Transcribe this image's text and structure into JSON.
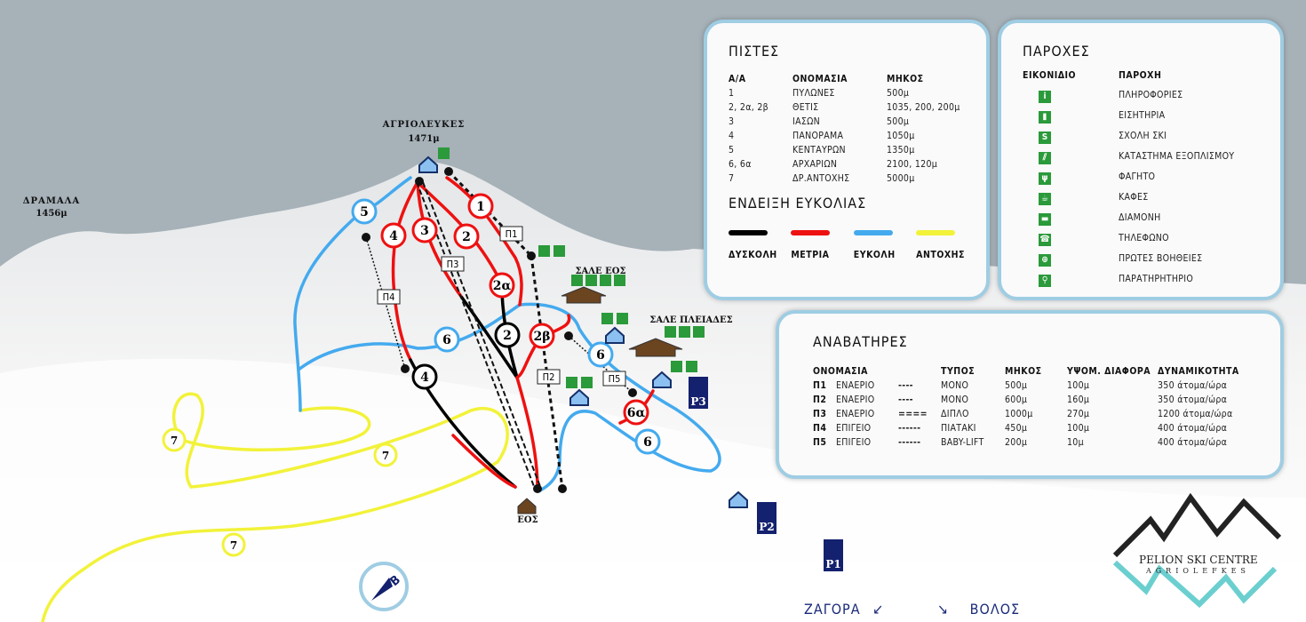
{
  "map": {
    "peaks": [
      {
        "name": "ΔΡΑΜΑΛΑ",
        "altitude": "1456μ"
      },
      {
        "name": "ΑΓΡΙΟΛΕΥΚΕΣ",
        "altitude": "1471μ"
      }
    ],
    "chalets": [
      "ΣΑΛΕ ΕΟΣ",
      "ΣΑΛΕ ΠΛΕΙΑΔΕΣ"
    ],
    "base_label": "ΕΟΣ",
    "piste_markers": [
      "1",
      "2",
      "2α",
      "2β",
      "2",
      "3",
      "4",
      "4",
      "5",
      "6",
      "6",
      "6",
      "6α",
      "7",
      "7",
      "7"
    ],
    "lift_labels": [
      "Π1",
      "Π2",
      "Π3",
      "Π4",
      "Π5"
    ],
    "parking": [
      "P1",
      "P2",
      "P3"
    ],
    "roads": [
      {
        "label": "ΖΑΓΟΡΑ",
        "arrow": "↙"
      },
      {
        "label": "ΒΟΛΟΣ",
        "arrow": "↘"
      }
    ],
    "compass_label": "B",
    "colors": {
      "difficult": "#000000",
      "intermediate": "#ee1111",
      "easy": "#44aaee",
      "endurance": "#f2f23a",
      "facility": "#2a9a3a",
      "parking": "#14216e",
      "panel_border": "#9fcde3",
      "sky": "#a6b1b8"
    }
  },
  "pistes": {
    "title": "ΠΙΣΤΕΣ",
    "headers": [
      "Α/Α",
      "ΟΝΟΜΑΣΙΑ",
      "ΜΗΚΟΣ"
    ],
    "rows": [
      [
        "1",
        "ΠΥΛΩΝΕΣ",
        "500μ"
      ],
      [
        "2, 2α, 2β",
        "ΘΕΤΙΣ",
        "1035, 200, 200μ"
      ],
      [
        "3",
        "ΙΑΣΩΝ",
        "500μ"
      ],
      [
        "4",
        "ΠΑΝΟΡΑΜΑ",
        "1050μ"
      ],
      [
        "5",
        "ΚΕΝΤΑΥΡΩΝ",
        "1350μ"
      ],
      [
        "6, 6α",
        "ΑΡΧΑΡΙΩΝ",
        "2100, 120μ"
      ],
      [
        "7",
        "ΔΡ.ΑΝΤΟΧΗΣ",
        "5000μ"
      ]
    ],
    "legend_title": "ΕΝΔΕΙΞΗ ΕΥΚΟΛΙΑΣ",
    "legend": [
      {
        "label": "ΔΥΣΚΟΛΗ",
        "color": "#000000"
      },
      {
        "label": "ΜΕΤΡΙΑ",
        "color": "#ee1111"
      },
      {
        "label": "ΕΥΚΟΛΗ",
        "color": "#44aaee"
      },
      {
        "label": "ΑΝΤΟΧΗΣ",
        "color": "#f2f23a"
      }
    ]
  },
  "facilities": {
    "title": "ΠΑΡΟΧΕΣ",
    "headers": [
      "ΕΙΚΟΝΙΔΙΟ",
      "ΠΑΡΟΧΗ"
    ],
    "rows": [
      {
        "icon": "info-icon",
        "glyph": "i",
        "label": "ΠΛΗΡΟΦΟΡΙΕΣ"
      },
      {
        "icon": "ticket-icon",
        "glyph": "▮",
        "label": "ΕΙΣΗΤΗΡΙΑ"
      },
      {
        "icon": "ski-school-icon",
        "glyph": "S",
        "label": "ΣΧΟΛΗ ΣΚΙ"
      },
      {
        "icon": "ski-shop-icon",
        "glyph": "⫽",
        "label": "ΚΑΤΑΣΤΗΜΑ ΕΞΟΠΛΙΣΜΟΥ"
      },
      {
        "icon": "food-icon",
        "glyph": "ψ",
        "label": "ΦΑΓΗΤΟ"
      },
      {
        "icon": "cafe-icon",
        "glyph": "☕",
        "label": "ΚΑΦΕΣ"
      },
      {
        "icon": "bed-icon",
        "glyph": "▬",
        "label": "ΔΙΑΜΟΝΗ"
      },
      {
        "icon": "phone-icon",
        "glyph": "☎",
        "label": "ΤΗΛΕΦΩΝΟ"
      },
      {
        "icon": "first-aid-icon",
        "glyph": "⊕",
        "label": "ΠΡΩΤΕΣ ΒΟΗΘΕΙΕΣ"
      },
      {
        "icon": "observatory-icon",
        "glyph": "⚲",
        "label": "ΠΑΡΑΤΗΡΗΤΗΡΙΟ"
      }
    ]
  },
  "lifts": {
    "title": "ΑΝΑΒΑΤΗΡΕΣ",
    "headers": [
      "ΟΝΟΜΑΣΙΑ",
      "ΤΥΠΟΣ",
      "ΜΗΚΟΣ",
      "ΥΨΟΜ. ΔΙΑΦΟΡΑ",
      "ΔΥΝΑΜΙΚΟΤΗΤΑ"
    ],
    "rows": [
      [
        "Π1",
        "ΕΝΑΕΡΙΟ",
        "----",
        "ΜΟΝΟ",
        "500μ",
        "100μ",
        "350 άτομα/ώρα"
      ],
      [
        "Π2",
        "ΕΝΑΕΡΙΟ",
        "----",
        "ΜΟΝΟ",
        "600μ",
        "160μ",
        "350 άτομα/ώρα"
      ],
      [
        "Π3",
        "ΕΝΑΕΡΙΟ",
        "====",
        "ΔΙΠΛΟ",
        "1000μ",
        "270μ",
        "1200 άτομα/ώρα"
      ],
      [
        "Π4",
        "ΕΠΙΓΕΙΟ",
        "------",
        "ΠΙΑΤΑΚΙ",
        "450μ",
        "100μ",
        "400 άτομα/ώρα"
      ],
      [
        "Π5",
        "ΕΠΙΓΕΙΟ",
        "------",
        "BABY-LIFT",
        "200μ",
        "10μ",
        "400 άτομα/ώρα"
      ]
    ]
  },
  "logo": {
    "line1": "PELION SKI CENTRE",
    "line2": "AGRIOLEFKES"
  }
}
